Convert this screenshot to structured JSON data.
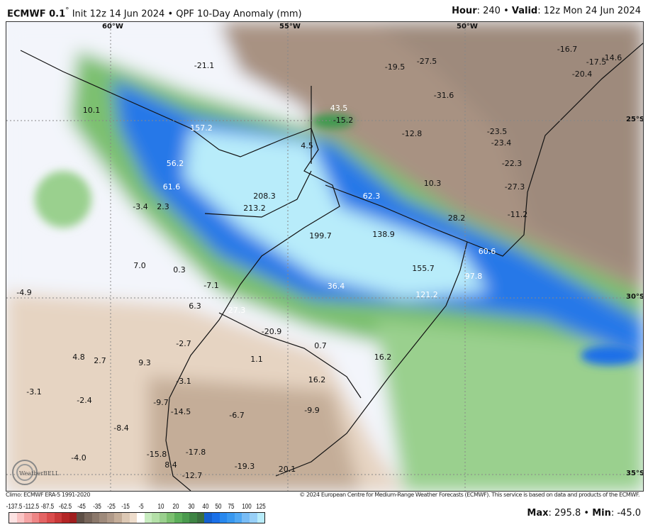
{
  "header": {
    "model": "ECMWF 0.1",
    "degree": "°",
    "init": "Init 12z 14 Jun 2024",
    "separator": "•",
    "product": "QPF 10-Day Anomaly (mm)",
    "hour_label": "Hour",
    "hour": ": 240",
    "valid_label": "Valid",
    "valid": ": 12z Mon 24 Jun 2024"
  },
  "grid_labels": [
    "60°W",
    "55°W",
    "50°W",
    "25°S",
    "30°S",
    "35°S"
  ],
  "labels": [
    "-21.1",
    "-19.5",
    "-27.5",
    "-16.7",
    "-14.6",
    "-17.5",
    "-20.4",
    "10.1",
    "43.5",
    "-15.2",
    "-31.6",
    "157.2",
    "-12.8",
    "-23.5",
    "-23.4",
    "4.5",
    "-22.3",
    "56.2",
    "-27.3",
    "10.3",
    "61.6",
    "62.3",
    "208.3",
    "213.2",
    "-3.4",
    "2.3",
    "-11.2",
    "28.2",
    "199.7",
    "138.9",
    "60.6",
    "7.0",
    "0.3",
    "155.7",
    "97.8",
    "-4.9",
    "-7.1",
    "36.4",
    "121.2",
    "6.3",
    "27.3",
    "-20.9",
    "0.7",
    "16.2",
    "4.8",
    "2.7",
    "9.3",
    "-2.7",
    "1.1",
    "-3.1",
    "16.2",
    "-3.1",
    "-2.4",
    "-9.7",
    "-14.5",
    "-6.7",
    "-9.9",
    "-8.4",
    "-4.0",
    "-15.8",
    "8.4",
    "-17.8",
    "-12.7",
    "-19.3",
    "20.1"
  ],
  "footer": {
    "climo": "Climo: ECMWF ERA-5 1991-2020",
    "copyright": "© 2024 European Centre for Medium-Range Weather Forecasts (ECMWF). This service is based on data and products of the ECMWF."
  },
  "logo_text": "WeatherBELL",
  "legend": {
    "ticks": [
      "-137.5",
      "-112.5",
      "-87.5",
      "-62.5",
      "-45",
      "-35",
      "-25",
      "-15",
      "-5",
      "10",
      "20",
      "30",
      "40",
      "50",
      "75",
      "100",
      "125"
    ],
    "colors": [
      "#fde2e2",
      "#fac4c4",
      "#f4a4a4",
      "#ee8686",
      "#e46464",
      "#da4c4c",
      "#c93838",
      "#b42626",
      "#a01e1e",
      "#5e4f46",
      "#77655a",
      "#8b786b",
      "#9e8a7b",
      "#b09a89",
      "#c4ad98",
      "#dcc8b4",
      "#eeddcc",
      "#ffffff",
      "#c8ecc0",
      "#b4e0a8",
      "#9ad08e",
      "#7cc070",
      "#5cae5a",
      "#4a9a4e",
      "#3e8444",
      "#3a6e3e",
      "#1460d0",
      "#1a70e8",
      "#2888ee",
      "#3898f0",
      "#50a8f4",
      "#78bcf6",
      "#98d0f8",
      "#b8ecfa"
    ]
  },
  "stats": {
    "max_label": "Max",
    "max": ": 295.8",
    "sep": " • ",
    "min_label": "Min",
    "min": ": -45.0"
  }
}
